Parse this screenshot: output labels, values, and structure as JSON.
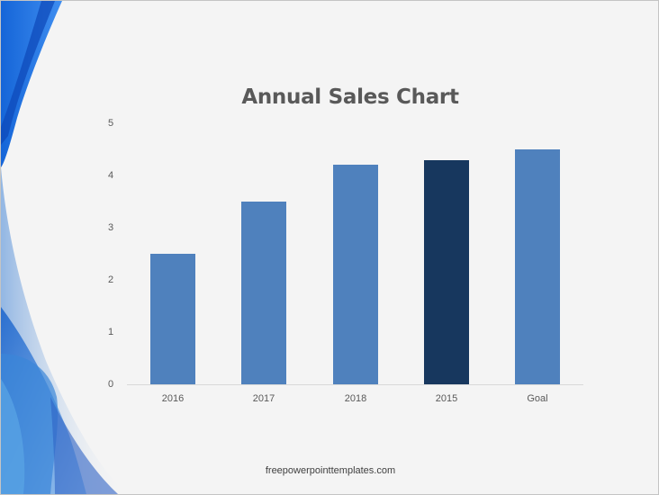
{
  "slide": {
    "footer": "freepowerpointtemplates.com"
  },
  "chart_data": {
    "type": "bar",
    "title": "Annual Sales Chart",
    "categories": [
      "2016",
      "2017",
      "2018",
      "2015",
      "Goal"
    ],
    "values": [
      2.5,
      3.5,
      4.2,
      4.3,
      4.5
    ],
    "bar_colors": [
      "#4f81bd",
      "#4f81bd",
      "#4f81bd",
      "#17375e",
      "#4f81bd"
    ],
    "xlabel": "",
    "ylabel": "",
    "ylim": [
      0,
      5
    ],
    "yticks": [
      "0",
      "1",
      "2",
      "3",
      "4",
      "5"
    ],
    "grid": false,
    "legend": "none"
  }
}
